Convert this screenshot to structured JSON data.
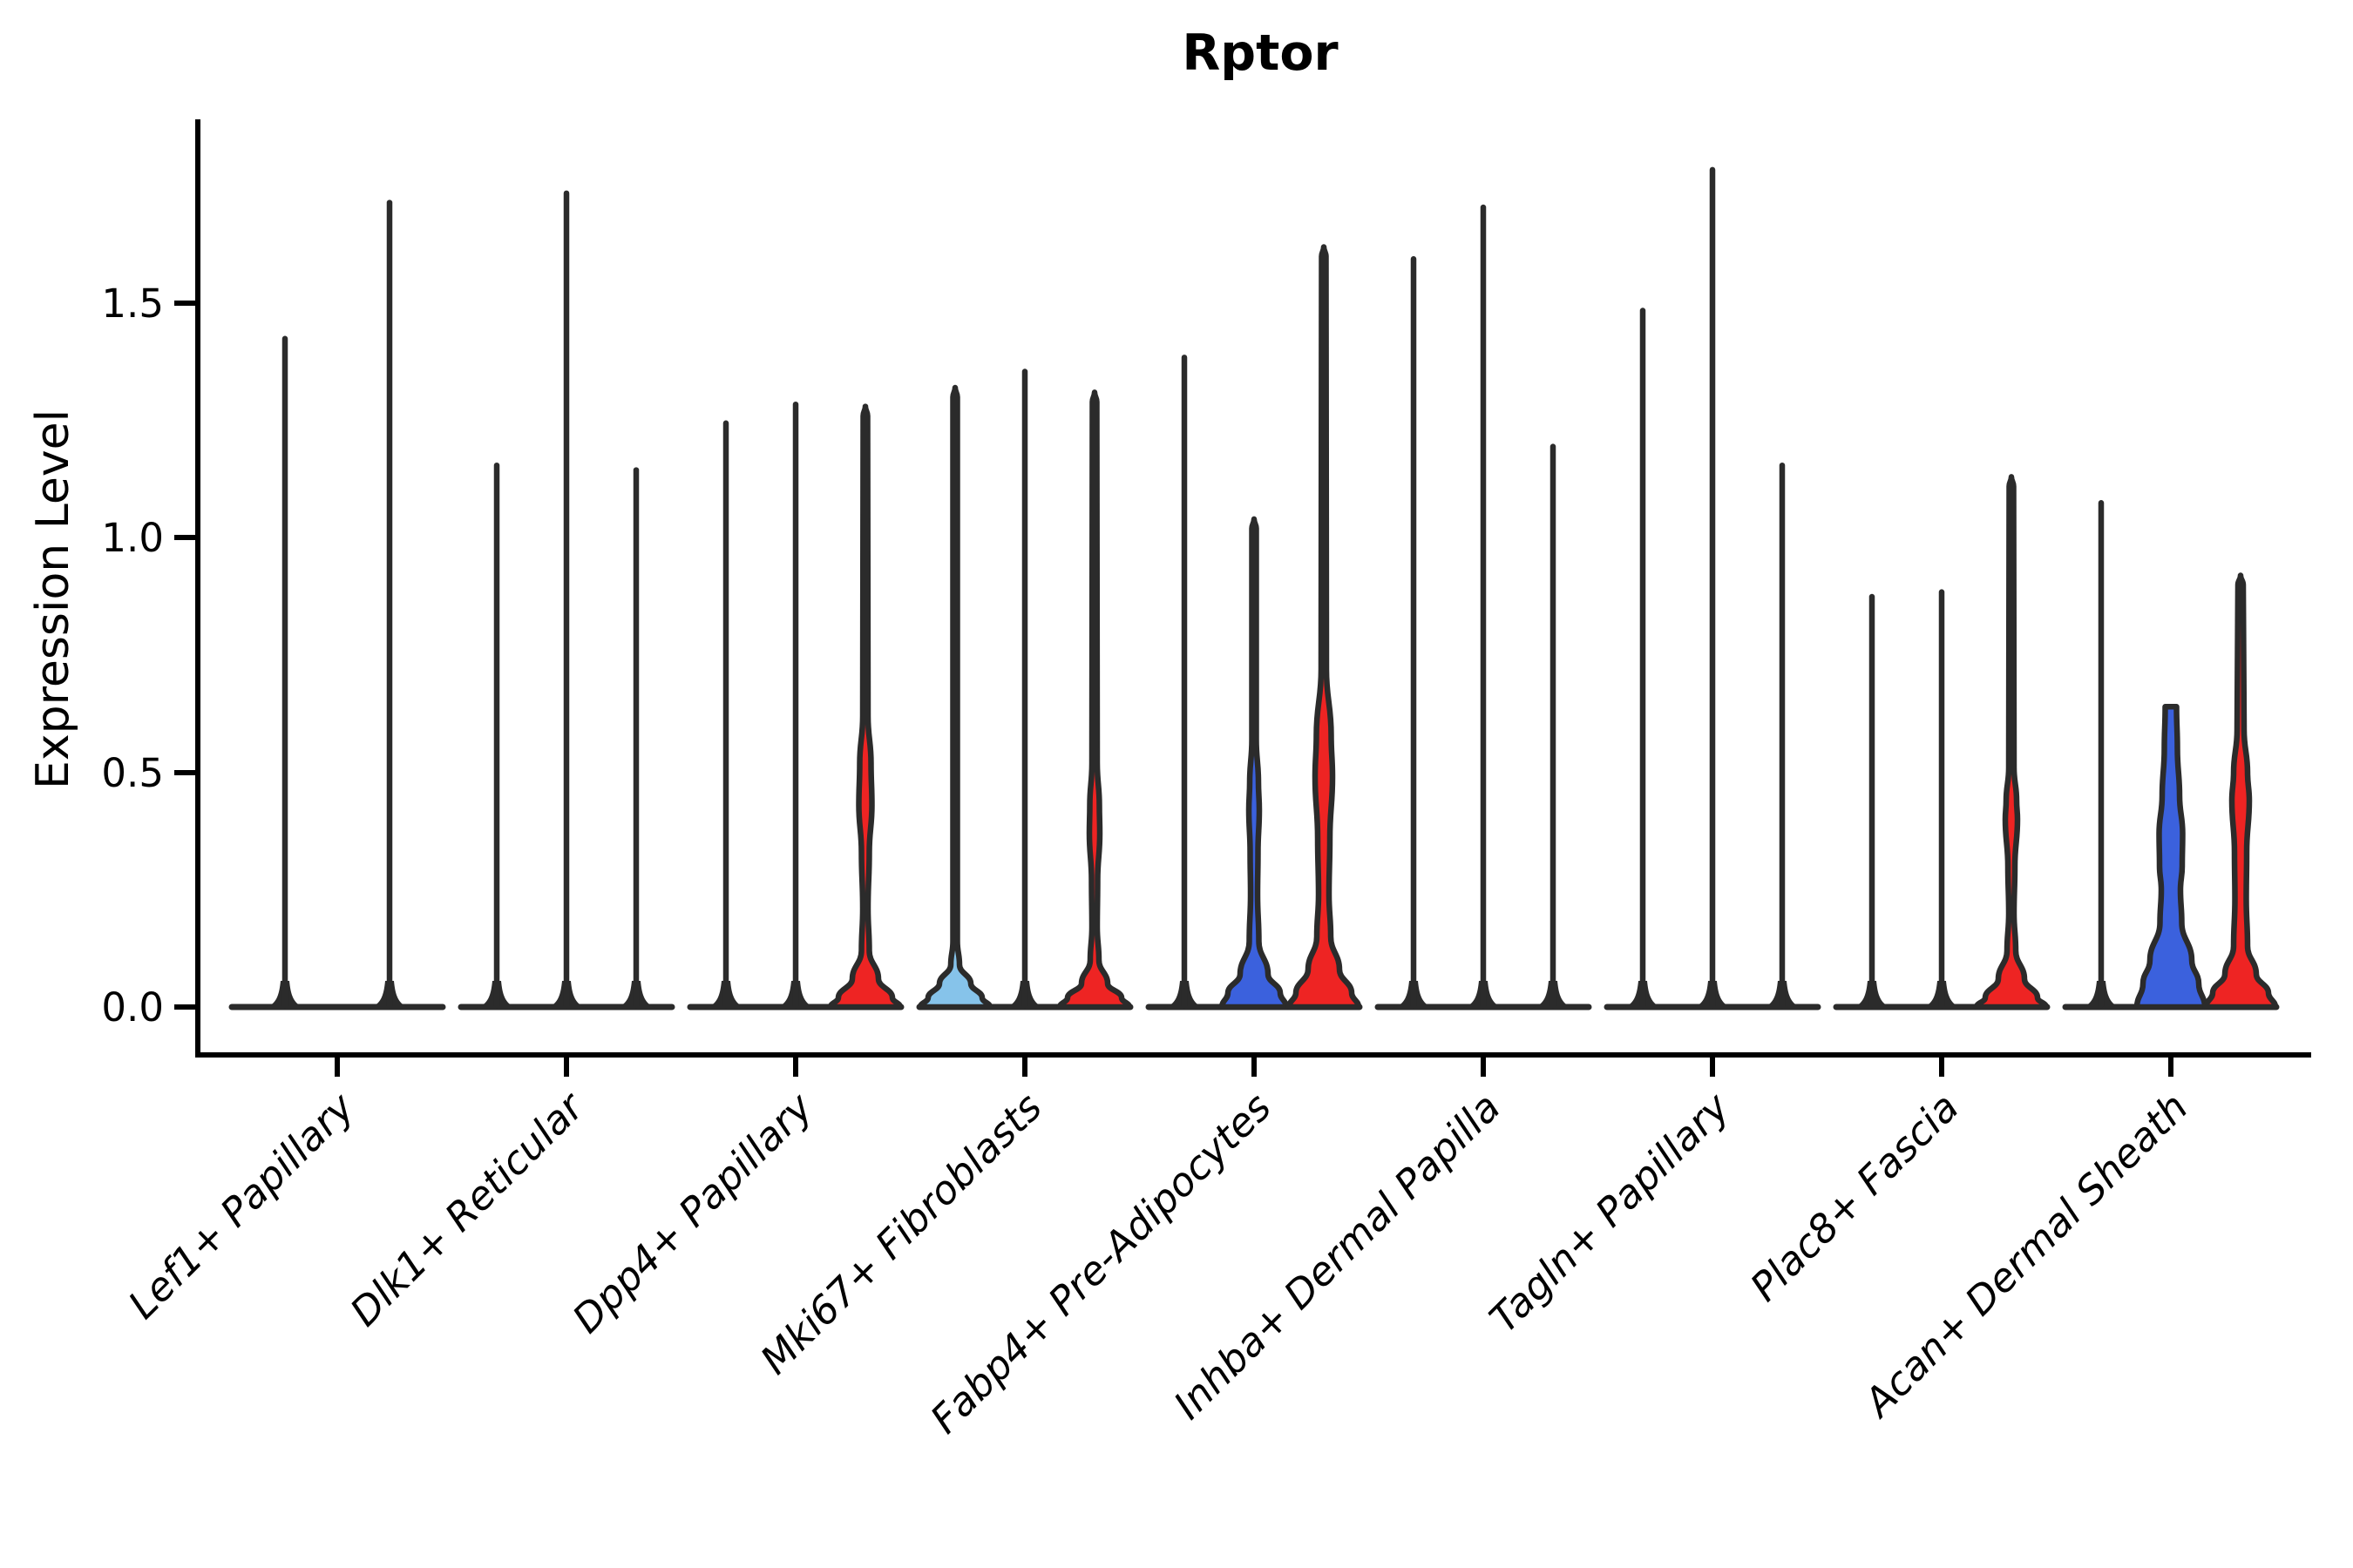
{
  "figure": {
    "title": "Rptor",
    "y_axis_label": "Expression Level"
  },
  "chart_data": {
    "type": "violin",
    "title": "Rptor",
    "xlabel": "",
    "ylabel": "Expression Level",
    "ylim": [
      -0.1,
      1.88
    ],
    "grid": false,
    "legend": "none",
    "ytick_labels": [
      "1.5",
      "1.0",
      "0.5",
      "0.0"
    ],
    "ytick_values": [
      1.5,
      1.0,
      0.5,
      0.0
    ],
    "categories": [
      "Lef1+ Papillary",
      "Dlk1+ Reticular",
      "Dpp4+ Papillary",
      "Mki67+ Fibroblasts",
      "Fabp4+ Pre-Adipocytes",
      "Inhba+ Dermal Papilla",
      "Tagln+ Papillary",
      "Plac8+ Fascia",
      "Acan+ Dermal Sheath"
    ],
    "palette": {
      "red": "#EE2423",
      "blue": "#3B61DD",
      "light_blue": "#86C3EA",
      "outline": "#2B2B2B",
      "axis": "#000000"
    },
    "groups": [
      {
        "category": "Lef1+ Papillary",
        "violins": [
          {
            "style": "thin-spike",
            "fill": null,
            "max_expression": 1.43,
            "profile": null
          },
          {
            "style": "thin-spike",
            "fill": null,
            "max_expression": 1.72,
            "profile": null
          }
        ]
      },
      {
        "category": "Dlk1+ Reticular",
        "violins": [
          {
            "style": "thin-spike",
            "fill": null,
            "max_expression": 1.16,
            "profile": null
          },
          {
            "style": "thin-spike",
            "fill": null,
            "max_expression": 1.74,
            "profile": null
          },
          {
            "style": "thin-spike",
            "fill": null,
            "max_expression": 1.15,
            "profile": null
          }
        ]
      },
      {
        "category": "Dpp4+ Papillary",
        "violins": [
          {
            "style": "thin-spike",
            "fill": null,
            "max_expression": 1.25,
            "profile": null
          },
          {
            "style": "thin-spike",
            "fill": null,
            "max_expression": 1.29,
            "profile": null
          },
          {
            "style": "violin",
            "fill": "red",
            "max_expression": 1.28,
            "profile": [
              [
                1.28,
                0
              ],
              [
                1.26,
                2.5
              ],
              [
                0.62,
                3
              ],
              [
                0.52,
                6.5
              ],
              [
                0.43,
                7.5
              ],
              [
                0.33,
                4.5
              ],
              [
                0.21,
                3
              ],
              [
                0.12,
                4.5
              ],
              [
                0.06,
                15
              ],
              [
                0.02,
                31
              ],
              [
                0,
                40
              ]
            ]
          }
        ]
      },
      {
        "category": "Mki67+ Fibroblasts",
        "violins": [
          {
            "style": "violin",
            "fill": "light_blue",
            "max_expression": 1.32,
            "profile": [
              [
                1.32,
                0
              ],
              [
                1.3,
                2.5
              ],
              [
                0.14,
                2.5
              ],
              [
                0.09,
                5
              ],
              [
                0.05,
                18
              ],
              [
                0.02,
                31
              ],
              [
                0,
                40
              ]
            ]
          },
          {
            "style": "thin-spike",
            "fill": null,
            "max_expression": 1.36,
            "profile": null
          },
          {
            "style": "violin",
            "fill": "red",
            "max_expression": 1.31,
            "profile": [
              [
                1.31,
                0
              ],
              [
                1.29,
                2.5
              ],
              [
                0.52,
                3
              ],
              [
                0.43,
                5.5
              ],
              [
                0.37,
                6
              ],
              [
                0.27,
                3.5
              ],
              [
                0.17,
                3
              ],
              [
                0.1,
                5
              ],
              [
                0.05,
                15
              ],
              [
                0.02,
                31
              ],
              [
                0,
                40
              ]
            ]
          }
        ]
      },
      {
        "category": "Fabp4+ Pre-Adipocytes",
        "violins": [
          {
            "style": "thin-spike",
            "fill": null,
            "max_expression": 1.39,
            "profile": null
          },
          {
            "style": "violin",
            "fill": "blue",
            "max_expression": 1.04,
            "profile": [
              [
                1.04,
                0
              ],
              [
                1.02,
                2.5
              ],
              [
                0.57,
                2.5
              ],
              [
                0.48,
                5
              ],
              [
                0.42,
                6
              ],
              [
                0.33,
                4.5
              ],
              [
                0.24,
                4
              ],
              [
                0.14,
                5.5
              ],
              [
                0.07,
                16
              ],
              [
                0.03,
                30
              ],
              [
                0,
                37
              ]
            ]
          },
          {
            "style": "violin",
            "fill": "red",
            "max_expression": 1.62,
            "profile": [
              [
                1.62,
                0
              ],
              [
                1.6,
                2.5
              ],
              [
                0.72,
                3
              ],
              [
                0.58,
                8.5
              ],
              [
                0.49,
                10
              ],
              [
                0.36,
                7
              ],
              [
                0.24,
                6
              ],
              [
                0.15,
                8
              ],
              [
                0.08,
                18
              ],
              [
                0.03,
                32
              ],
              [
                0,
                40
              ]
            ]
          }
        ]
      },
      {
        "category": "Inhba+ Dermal Papilla",
        "violins": [
          {
            "style": "thin-spike",
            "fill": null,
            "max_expression": 1.6,
            "profile": null
          },
          {
            "style": "thin-spike",
            "fill": null,
            "max_expression": 1.71,
            "profile": null
          },
          {
            "style": "thin-spike",
            "fill": null,
            "max_expression": 1.2,
            "profile": null
          }
        ]
      },
      {
        "category": "Tagln+ Papillary",
        "violins": [
          {
            "style": "thin-spike",
            "fill": null,
            "max_expression": 1.49,
            "profile": null
          },
          {
            "style": "thin-spike",
            "fill": null,
            "max_expression": 1.79,
            "profile": null
          },
          {
            "style": "thin-spike",
            "fill": null,
            "max_expression": 1.16,
            "profile": null
          }
        ]
      },
      {
        "category": "Plac8+ Fascia",
        "violins": [
          {
            "style": "thin-spike",
            "fill": null,
            "max_expression": 0.88,
            "profile": null
          },
          {
            "style": "thin-spike",
            "fill": null,
            "max_expression": 0.89,
            "profile": null
          },
          {
            "style": "violin",
            "fill": "red",
            "max_expression": 1.13,
            "profile": [
              [
                1.13,
                0
              ],
              [
                1.11,
                2.5
              ],
              [
                0.51,
                3
              ],
              [
                0.44,
                6
              ],
              [
                0.4,
                7
              ],
              [
                0.3,
                4
              ],
              [
                0.2,
                3
              ],
              [
                0.12,
                5
              ],
              [
                0.06,
                15
              ],
              [
                0.02,
                30
              ],
              [
                0,
                40
              ]
            ]
          }
        ]
      },
      {
        "category": "Acan+ Dermal Sheath",
        "violins": [
          {
            "style": "thin-spike",
            "fill": null,
            "max_expression": 1.08,
            "profile": null
          },
          {
            "style": "violin",
            "fill": "blue",
            "max_expression": 0.64,
            "flat_top": true,
            "profile": [
              [
                0.64,
                6.5
              ],
              [
                0.55,
                7.5
              ],
              [
                0.45,
                10
              ],
              [
                0.37,
                13.5
              ],
              [
                0.3,
                13
              ],
              [
                0.25,
                11
              ],
              [
                0.18,
                12.5
              ],
              [
                0.1,
                24
              ],
              [
                0.05,
                32
              ],
              [
                0,
                39
              ]
            ]
          },
          {
            "style": "violin",
            "fill": "red",
            "max_expression": 0.92,
            "profile": [
              [
                0.92,
                0
              ],
              [
                0.9,
                3
              ],
              [
                0.59,
                4
              ],
              [
                0.5,
                8
              ],
              [
                0.44,
                10
              ],
              [
                0.33,
                7
              ],
              [
                0.23,
                6.5
              ],
              [
                0.13,
                8
              ],
              [
                0.07,
                18
              ],
              [
                0.03,
                32
              ],
              [
                0,
                40
              ]
            ]
          }
        ]
      }
    ]
  }
}
